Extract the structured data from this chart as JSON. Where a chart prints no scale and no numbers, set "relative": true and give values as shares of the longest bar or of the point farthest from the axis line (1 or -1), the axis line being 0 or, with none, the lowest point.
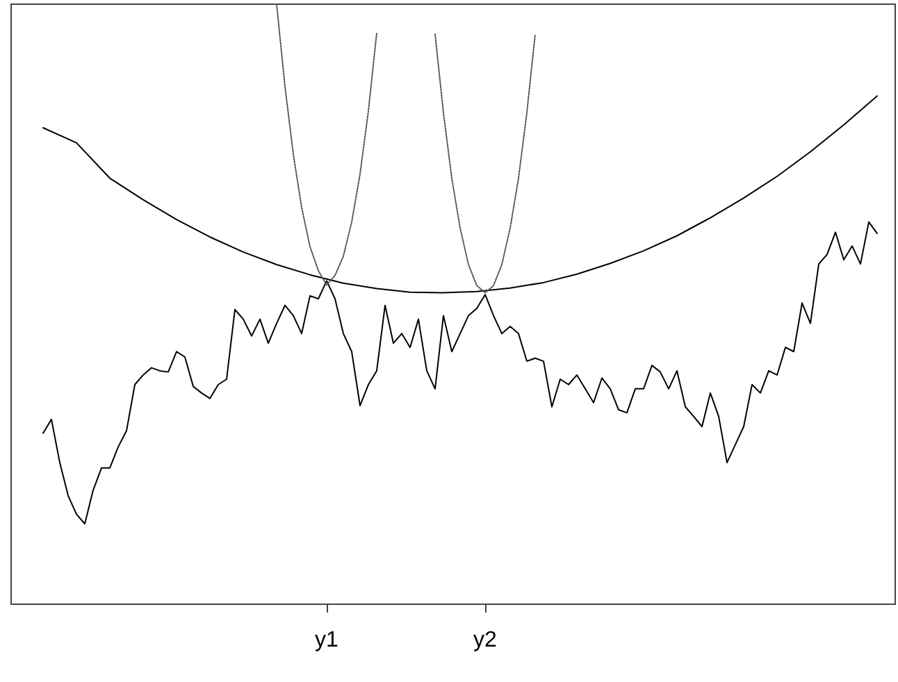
{
  "chart_data": {
    "type": "line",
    "relative": true,
    "categories": [
      null,
      null,
      null,
      null,
      null,
      null,
      null,
      null,
      null,
      null,
      null,
      null,
      null,
      null,
      null,
      null,
      null,
      null,
      null,
      null,
      null,
      null,
      null,
      null,
      null,
      null,
      null,
      null,
      null,
      null,
      null,
      null,
      null,
      null,
      "y1",
      null,
      null,
      null,
      null,
      null,
      null,
      null,
      null,
      null,
      null,
      null,
      null,
      null,
      null,
      null,
      null,
      null,
      null,
      "y2",
      null,
      null,
      null,
      null,
      null,
      null,
      null,
      null,
      null,
      null,
      null,
      null,
      null,
      null,
      null,
      null,
      null,
      null,
      null,
      null,
      null,
      null,
      null,
      null,
      null,
      null,
      null,
      null,
      null,
      null,
      null,
      null,
      null,
      null,
      null,
      null,
      null,
      null,
      null,
      null,
      null,
      null,
      null,
      null,
      null,
      null,
      null
    ],
    "series": [
      {
        "color": "#000000",
        "line_style": "solid",
        "values": [
          0.285,
          0.308,
          0.236,
          0.181,
          0.15,
          0.134,
          0.19,
          0.227,
          0.227,
          0.262,
          0.289,
          0.366,
          0.382,
          0.394,
          0.389,
          0.387,
          0.421,
          0.412,
          0.363,
          0.352,
          0.343,
          0.366,
          0.375,
          0.491,
          0.475,
          0.447,
          0.475,
          0.435,
          0.468,
          0.498,
          0.481,
          0.451,
          0.514,
          0.509,
          0.539,
          0.509,
          0.451,
          0.421,
          0.331,
          0.366,
          0.389,
          0.498,
          0.435,
          0.451,
          0.428,
          0.475,
          0.389,
          0.359,
          0.481,
          0.421,
          0.451,
          0.481,
          0.493,
          0.516,
          0.481,
          0.451,
          0.463,
          0.451,
          0.405,
          0.41,
          0.405,
          0.329,
          0.375,
          0.366,
          0.382,
          0.359,
          0.336,
          0.377,
          0.359,
          0.324,
          0.319,
          0.359,
          0.359,
          0.398,
          0.387,
          0.359,
          0.389,
          0.329,
          0.313,
          0.296,
          0.352,
          0.313,
          0.236,
          0.266,
          0.296,
          0.366,
          0.352,
          0.389,
          0.382,
          0.428,
          0.421,
          0.502,
          0.468,
          0.567,
          0.583,
          0.62,
          0.574,
          0.597,
          0.567,
          0.637,
          0.618
        ]
      },
      {
        "color": "#000000",
        "line_style": "solid",
        "values": [
          0.794,
          null,
          null,
          null,
          0.769,
          null,
          null,
          null,
          0.71,
          null,
          null,
          null,
          0.674,
          null,
          null,
          null,
          0.641,
          null,
          null,
          null,
          0.612,
          null,
          null,
          null,
          0.587,
          null,
          null,
          null,
          0.566,
          null,
          null,
          null,
          0.549,
          null,
          null,
          null,
          0.535,
          null,
          null,
          null,
          0.526,
          null,
          null,
          null,
          0.52,
          null,
          null,
          null,
          0.519,
          null,
          null,
          null,
          0.521,
          null,
          null,
          null,
          0.527,
          null,
          null,
          null,
          0.536,
          null,
          null,
          null,
          0.55,
          null,
          null,
          null,
          0.568,
          null,
          null,
          null,
          0.589,
          null,
          null,
          null,
          0.614,
          null,
          null,
          null,
          0.644,
          null,
          null,
          null,
          0.677,
          null,
          null,
          null,
          0.713,
          null,
          null,
          null,
          0.754,
          null,
          null,
          null,
          0.799,
          null,
          null,
          null,
          0.847
        ]
      },
      {
        "color": "#555555",
        "line_style": "dotted",
        "values": [
          null,
          null,
          null,
          null,
          null,
          null,
          null,
          null,
          null,
          null,
          null,
          null,
          null,
          null,
          null,
          null,
          null,
          null,
          null,
          null,
          null,
          null,
          null,
          null,
          null,
          null,
          null,
          null,
          1.0,
          0.863,
          0.75,
          0.661,
          0.596,
          0.556,
          0.532,
          0.548,
          0.58,
          0.637,
          0.717,
          0.822,
          0.952,
          null,
          null,
          null,
          null,
          null,
          null,
          null,
          null,
          null,
          null,
          null,
          null,
          null,
          null,
          null,
          null,
          null,
          null,
          null,
          null,
          null,
          null,
          null,
          null,
          null,
          null,
          null,
          null,
          null,
          null,
          null,
          null,
          null,
          null,
          null,
          null,
          null,
          null,
          null,
          null,
          null,
          null,
          null,
          null,
          null,
          null,
          null,
          null,
          null,
          null,
          null,
          null,
          null,
          null,
          null,
          null,
          null,
          null,
          null,
          null
        ]
      },
      {
        "color": "#555555",
        "line_style": "dotted",
        "values": [
          null,
          null,
          null,
          null,
          null,
          null,
          null,
          null,
          null,
          null,
          null,
          null,
          null,
          null,
          null,
          null,
          null,
          null,
          null,
          null,
          null,
          null,
          null,
          null,
          null,
          null,
          null,
          null,
          null,
          null,
          null,
          null,
          null,
          null,
          null,
          null,
          null,
          null,
          null,
          null,
          null,
          null,
          null,
          null,
          null,
          null,
          null,
          0.95,
          0.819,
          0.71,
          0.627,
          0.566,
          0.531,
          0.519,
          0.531,
          0.566,
          0.627,
          0.71,
          0.819,
          0.95,
          null,
          null,
          null,
          null,
          null,
          null,
          null,
          null,
          null,
          null,
          null,
          null,
          null,
          null,
          null,
          null,
          null,
          null,
          null,
          null,
          null,
          null,
          null,
          null,
          null,
          null,
          null,
          null,
          null,
          null,
          null,
          null,
          null,
          null,
          null,
          null,
          null,
          null,
          null,
          null,
          null
        ]
      }
    ]
  }
}
